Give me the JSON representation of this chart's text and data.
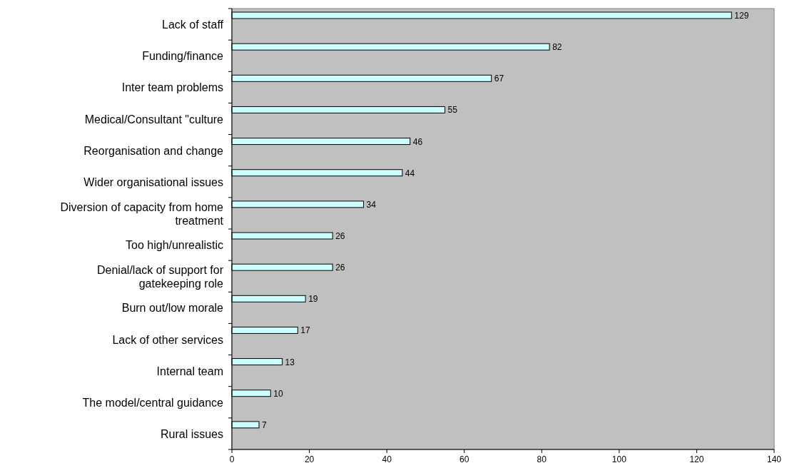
{
  "chart_data": {
    "type": "bar",
    "orientation": "horizontal",
    "categories": [
      "Lack of staff",
      "Funding/finance",
      "Inter team problems",
      "Medical/Consultant \"culture",
      "Reorganisation and change",
      "Wider organisational issues",
      "Diversion of capacity from home treatment",
      "Too high/unrealistic",
      "Denial/lack of support for gatekeeping role",
      "Burn out/low morale",
      "Lack of other services",
      "Internal team",
      "The model/central guidance",
      "Rural issues"
    ],
    "values": [
      129,
      82,
      67,
      55,
      46,
      44,
      34,
      26,
      26,
      19,
      17,
      13,
      10,
      7
    ],
    "color": "#ccffff",
    "xlim": [
      0,
      140
    ],
    "xticks": [
      0,
      20,
      40,
      60,
      80,
      100,
      120,
      140
    ],
    "data_labels": true
  }
}
